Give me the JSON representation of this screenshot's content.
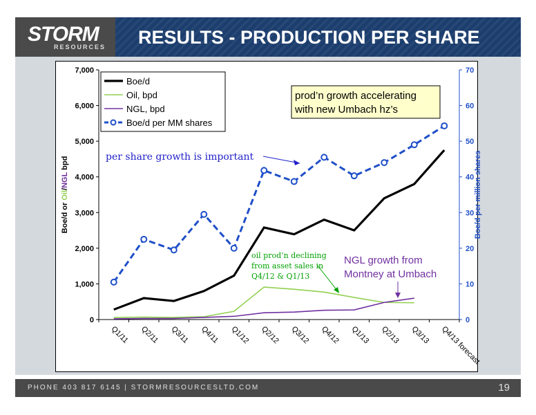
{
  "header": {
    "logo_main": "STORM",
    "logo_sub": "RESOURCES",
    "title": "RESULTS - PRODUCTION PER SHARE"
  },
  "footer": {
    "text": "PHONE 403 817 6145  |  STORMRESOURCESLTD.COM",
    "page_number": "19"
  },
  "colors": {
    "boed": "#000000",
    "oil": "#92d050",
    "ngl": "#7030a0",
    "per_share": "#1f4fc8",
    "header_bg": "#1c3e6e",
    "callout_bg": "#ffffcc"
  },
  "chart_data": {
    "type": "line",
    "categories": [
      "Q1/11",
      "Q2/11",
      "Q3/11",
      "Q4/11",
      "Q1/12",
      "Q2/12",
      "Q3/12",
      "Q4/12",
      "Q1/13",
      "Q2/13",
      "Q3/13",
      "Q4/13 forecast"
    ],
    "ylabel": "Boe/d or Oil/NGL bpd",
    "ylabel_parts": {
      "a": "Boe/d or ",
      "b": "Oil",
      "c": "/",
      "d": "NGL",
      "e": " bpd"
    },
    "y2label": "Boe/d per million shares",
    "ylim": [
      0,
      7000
    ],
    "y2lim": [
      0,
      70
    ],
    "yticks": [
      "0",
      "1,000",
      "2,000",
      "3,000",
      "4,000",
      "5,000",
      "6,000",
      "7,000"
    ],
    "y2ticks": [
      "0",
      "10",
      "20",
      "30",
      "40",
      "50",
      "60",
      "70"
    ],
    "series": [
      {
        "name": "Boe/d",
        "axis": "left",
        "values": [
          280,
          600,
          520,
          800,
          1230,
          2580,
          2390,
          2800,
          2500,
          3400,
          3800,
          4750
        ]
      },
      {
        "name": "Oil, bpd",
        "axis": "left",
        "values": [
          60,
          70,
          60,
          80,
          230,
          910,
          850,
          770,
          620,
          480,
          470,
          null
        ]
      },
      {
        "name": "NGL, bpd",
        "axis": "left",
        "values": [
          20,
          30,
          30,
          60,
          90,
          190,
          210,
          260,
          270,
          480,
          600,
          null
        ]
      },
      {
        "name": "Boe/d per MM shares",
        "axis": "right",
        "values": [
          10.5,
          22.5,
          19.5,
          29.5,
          20,
          41.8,
          38.7,
          45.5,
          40.3,
          44,
          49,
          54.3
        ]
      }
    ],
    "annotations": [
      {
        "lines": [
          "prod’n growth accelerating",
          "with new Umbach hz’s"
        ]
      },
      {
        "lines": [
          "per share growth is important"
        ]
      },
      {
        "lines": [
          "oil prod’n declining",
          "from asset sales in",
          "Q4/12 & Q1/13"
        ]
      },
      {
        "lines": [
          "NGL growth from",
          "Montney at Umbach"
        ]
      }
    ],
    "legend_position": "top-left",
    "grid": false
  }
}
